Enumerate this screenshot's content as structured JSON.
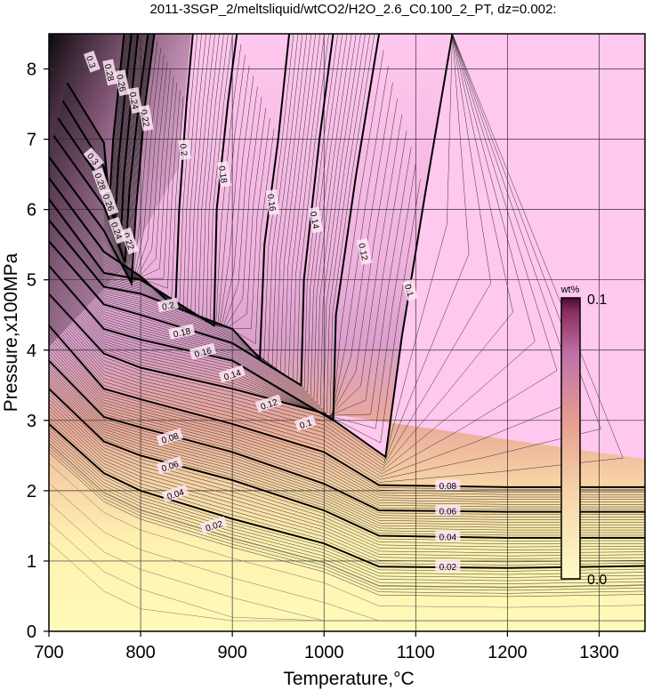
{
  "chart_data": {
    "type": "heatmap",
    "title": "2011-3SGP_2/meltsliquid/wtCO2/H2O_2.6_C0.100_2_PT, dz=0.002:",
    "xlabel": "Temperature,°C",
    "ylabel": "Pressure,x100MPa",
    "xlim": [
      700,
      1350
    ],
    "ylim": [
      0,
      8.5
    ],
    "x_ticks": [
      "700",
      "800",
      "900",
      "1000",
      "1100",
      "1200",
      "1300"
    ],
    "y_ticks": [
      "0",
      "1",
      "2",
      "3",
      "4",
      "5",
      "6",
      "7",
      "8"
    ],
    "grid": true,
    "colorbar": {
      "unit": "wt%",
      "min_label": "0.0",
      "max_label": "0.1",
      "range": [
        0.0,
        0.1
      ],
      "colors": [
        "#fffac8",
        "#f7d6a8",
        "#e8a090",
        "#8a3060",
        "#4a0a3a"
      ]
    },
    "saturated_region_color": "#ffc8ee",
    "contours": [
      {
        "label": "0.02",
        "points": [
          [
            700,
            2.95
          ],
          [
            760,
            2.25
          ],
          [
            800,
            2.0
          ],
          [
            900,
            1.6
          ],
          [
            1000,
            1.25
          ],
          [
            1060,
            0.92
          ],
          [
            1200,
            0.9
          ],
          [
            1350,
            0.93
          ]
        ]
      },
      {
        "label": "0.04",
        "points": [
          [
            700,
            3.45
          ],
          [
            760,
            2.7
          ],
          [
            800,
            2.5
          ],
          [
            900,
            2.15
          ],
          [
            1000,
            1.72
          ],
          [
            1060,
            1.36
          ],
          [
            1200,
            1.33
          ],
          [
            1350,
            1.33
          ]
        ]
      },
      {
        "label": "0.06",
        "points": [
          [
            700,
            3.85
          ],
          [
            760,
            3.05
          ],
          [
            800,
            2.9
          ],
          [
            900,
            2.55
          ],
          [
            1000,
            2.1
          ],
          [
            1060,
            1.72
          ],
          [
            1200,
            1.7
          ],
          [
            1350,
            1.7
          ]
        ]
      },
      {
        "label": "0.08",
        "points": [
          [
            700,
            4.35
          ],
          [
            760,
            3.45
          ],
          [
            800,
            3.3
          ],
          [
            900,
            2.95
          ],
          [
            1000,
            2.55
          ],
          [
            1060,
            2.08
          ],
          [
            1200,
            2.05
          ],
          [
            1350,
            2.05
          ]
        ]
      },
      {
        "label": "0.1",
        "points": [
          [
            700,
            4.8
          ],
          [
            760,
            3.95
          ],
          [
            800,
            3.75
          ],
          [
            900,
            3.45
          ],
          [
            1000,
            3.1
          ],
          [
            1067,
            2.48
          ],
          [
            1085,
            4.2
          ],
          [
            1110,
            6.2
          ],
          [
            1140,
            8.5
          ]
        ]
      },
      {
        "label": "0.12",
        "points": [
          [
            700,
            5.2
          ],
          [
            760,
            4.3
          ],
          [
            800,
            4.15
          ],
          [
            900,
            3.85
          ],
          [
            1010,
            3.0
          ],
          [
            1013,
            4.5
          ],
          [
            1035,
            6.5
          ],
          [
            1060,
            8.5
          ]
        ]
      },
      {
        "label": "0.14",
        "points": [
          [
            700,
            5.55
          ],
          [
            760,
            4.65
          ],
          [
            800,
            4.5
          ],
          [
            900,
            4.1
          ],
          [
            975,
            3.5
          ],
          [
            978,
            5.0
          ],
          [
            995,
            7.0
          ],
          [
            1010,
            8.5
          ]
        ]
      },
      {
        "label": "0.16",
        "points": [
          [
            700,
            5.85
          ],
          [
            760,
            4.9
          ],
          [
            800,
            4.8
          ],
          [
            900,
            4.3
          ],
          [
            930,
            3.88
          ],
          [
            935,
            5.5
          ],
          [
            950,
            7.0
          ],
          [
            962,
            8.5
          ]
        ]
      },
      {
        "label": "0.18",
        "points": [
          [
            700,
            6.15
          ],
          [
            760,
            5.1
          ],
          [
            800,
            5.0
          ],
          [
            880,
            4.35
          ],
          [
            883,
            6.0
          ],
          [
            895,
            7.5
          ],
          [
            905,
            8.5
          ]
        ]
      },
      {
        "label": "0.2",
        "points": [
          [
            700,
            6.45
          ],
          [
            760,
            5.4
          ],
          [
            800,
            5.05
          ],
          [
            838,
            4.6
          ],
          [
            842,
            6.0
          ],
          [
            850,
            7.5
          ],
          [
            857,
            8.5
          ]
        ]
      },
      {
        "label": "0.22",
        "points": [
          [
            700,
            6.75
          ],
          [
            760,
            5.7
          ],
          [
            790,
            4.95
          ],
          [
            795,
            6.0
          ],
          [
            805,
            7.5
          ],
          [
            815,
            8.5
          ]
        ]
      },
      {
        "label": "0.24",
        "points": [
          [
            705,
            7.05
          ],
          [
            760,
            6.05
          ],
          [
            783,
            5.25
          ],
          [
            788,
            6.3
          ],
          [
            798,
            7.5
          ],
          [
            808,
            8.5
          ]
        ]
      },
      {
        "label": "0.26",
        "points": [
          [
            710,
            7.3
          ],
          [
            760,
            6.35
          ],
          [
            778,
            5.55
          ],
          [
            782,
            6.5
          ],
          [
            790,
            7.6
          ],
          [
            797,
            8.5
          ]
        ]
      },
      {
        "label": "0.28",
        "points": [
          [
            715,
            7.55
          ],
          [
            760,
            6.6
          ],
          [
            772,
            5.8
          ],
          [
            776,
            6.7
          ],
          [
            784,
            7.8
          ],
          [
            790,
            8.5
          ]
        ]
      },
      {
        "label": "0.3",
        "points": [
          [
            720,
            7.8
          ],
          [
            760,
            6.95
          ],
          [
            766,
            6.1
          ],
          [
            770,
            7.0
          ],
          [
            778,
            8.0
          ],
          [
            782,
            8.5
          ]
        ]
      }
    ],
    "contour_labels": [
      {
        "text": "0.02",
        "x": 880,
        "y": 1.5,
        "rotate": 18
      },
      {
        "text": "0.04",
        "x": 838,
        "y": 1.95,
        "rotate": 18
      },
      {
        "text": "0.06",
        "x": 832,
        "y": 2.35,
        "rotate": 18
      },
      {
        "text": "0.08",
        "x": 832,
        "y": 2.75,
        "rotate": 18
      },
      {
        "text": "0.08",
        "x": 1135,
        "y": 2.07,
        "rotate": 0
      },
      {
        "text": "0.06",
        "x": 1135,
        "y": 1.71,
        "rotate": 0
      },
      {
        "text": "0.04",
        "x": 1135,
        "y": 1.34,
        "rotate": 0
      },
      {
        "text": "0.02",
        "x": 1135,
        "y": 0.92,
        "rotate": 0
      },
      {
        "text": "0.1",
        "x": 980,
        "y": 2.95,
        "rotate": 18
      },
      {
        "text": "0.1",
        "x": 1093,
        "y": 4.85,
        "rotate": -75
      },
      {
        "text": "0.12",
        "x": 940,
        "y": 3.23,
        "rotate": 18
      },
      {
        "text": "0.12",
        "x": 1043,
        "y": 5.4,
        "rotate": -78
      },
      {
        "text": "0.14",
        "x": 900,
        "y": 3.65,
        "rotate": 18
      },
      {
        "text": "0.14",
        "x": 990,
        "y": 5.85,
        "rotate": -80
      },
      {
        "text": "0.16",
        "x": 868,
        "y": 3.97,
        "rotate": 15
      },
      {
        "text": "0.16",
        "x": 943,
        "y": 6.1,
        "rotate": -82
      },
      {
        "text": "0.18",
        "x": 845,
        "y": 4.25,
        "rotate": 12
      },
      {
        "text": "0.18",
        "x": 890,
        "y": 6.5,
        "rotate": -82
      },
      {
        "text": "0.2",
        "x": 830,
        "y": 4.63,
        "rotate": 12
      },
      {
        "text": "0.2",
        "x": 847,
        "y": 6.85,
        "rotate": -83
      },
      {
        "text": "0.22",
        "x": 787,
        "y": 5.55,
        "rotate": -70
      },
      {
        "text": "0.22",
        "x": 805,
        "y": 7.3,
        "rotate": -80
      },
      {
        "text": "0.24",
        "x": 774,
        "y": 5.7,
        "rotate": -70
      },
      {
        "text": "0.24",
        "x": 793,
        "y": 7.55,
        "rotate": -80
      },
      {
        "text": "0.26",
        "x": 765,
        "y": 6.1,
        "rotate": -70
      },
      {
        "text": "0.26",
        "x": 779,
        "y": 7.8,
        "rotate": -78
      },
      {
        "text": "0.28",
        "x": 756,
        "y": 6.4,
        "rotate": -70
      },
      {
        "text": "0.28",
        "x": 766,
        "y": 7.95,
        "rotate": -78
      },
      {
        "text": "0.3",
        "x": 748,
        "y": 6.72,
        "rotate": -50
      },
      {
        "text": "0.3",
        "x": 746,
        "y": 8.1,
        "rotate": -70
      }
    ]
  }
}
